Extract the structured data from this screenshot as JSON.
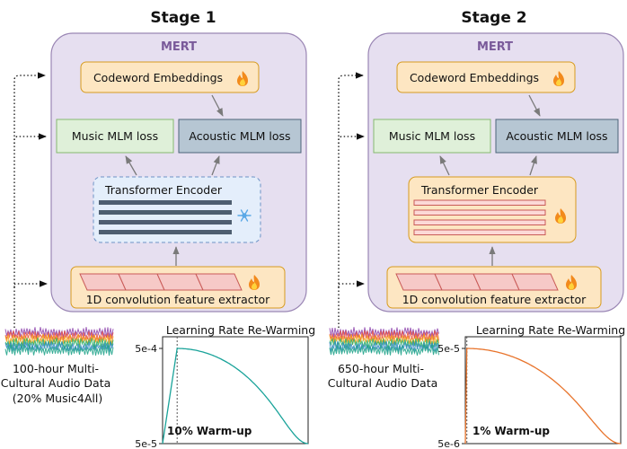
{
  "colors": {
    "mert_panel": "#e6dff0",
    "mert_border": "#9a86b4",
    "mert_title": "#7a5a9a",
    "orange_fill": "#fde6c2",
    "orange_border": "#d79b1f",
    "green_fill": "#dff0d9",
    "green_border": "#86b870",
    "steel_fill": "#b6c6d3",
    "steel_border": "#4c6478",
    "frozen_fill": "#e4eefb",
    "frozen_border": "#6d93c6",
    "frozen_bar": "#4e5e70",
    "hot_bar_fill": "#fcd9d7",
    "hot_bar_border": "#c95b58",
    "curve_stage1": "#1aa39a",
    "curve_stage2": "#e8742c"
  },
  "stages": [
    {
      "title": "Stage 1",
      "model_label": "MERT",
      "codeword_label": "Codeword Embeddings",
      "music_loss_label": "Music MLM loss",
      "acoustic_loss_label": "Acoustic MLM loss",
      "encoder_label": "Transformer Encoder",
      "encoder_state": "frozen",
      "encoder_icon": "snowflake-icon",
      "extractor_label": "1D convolution feature extractor",
      "data_lines": [
        "100-hour Multi-",
        "Cultural Audio Data",
        "(20% Music4All)"
      ],
      "chart_data": {
        "type": "line",
        "title": "Learning Rate Re-Warming",
        "ytick_top": "5e-4",
        "ytick_bottom": "5e-5",
        "ylim": [
          5e-05,
          0.0005
        ],
        "warmup_label": "10% Warm-up",
        "warmup_fraction": 0.1,
        "peak": 0.0005,
        "floor": 5e-05,
        "color": "#1aa39a"
      }
    },
    {
      "title": "Stage 2",
      "model_label": "MERT",
      "codeword_label": "Codeword Embeddings",
      "music_loss_label": "Music MLM loss",
      "acoustic_loss_label": "Acoustic MLM loss",
      "encoder_label": "Transformer Encoder",
      "encoder_state": "trainable",
      "encoder_icon": "fire-icon",
      "extractor_label": "1D convolution feature extractor",
      "data_lines": [
        "650-hour Multi-",
        "Cultural Audio Data"
      ],
      "chart_data": {
        "type": "line",
        "title": "Learning Rate Re-Warming",
        "ytick_top": "5e-5",
        "ytick_bottom": "5e-6",
        "ylim": [
          5e-06,
          5e-05
        ],
        "warmup_label": "1% Warm-up",
        "warmup_fraction": 0.01,
        "peak": 5e-05,
        "floor": 5e-06,
        "color": "#e8742c"
      }
    }
  ]
}
